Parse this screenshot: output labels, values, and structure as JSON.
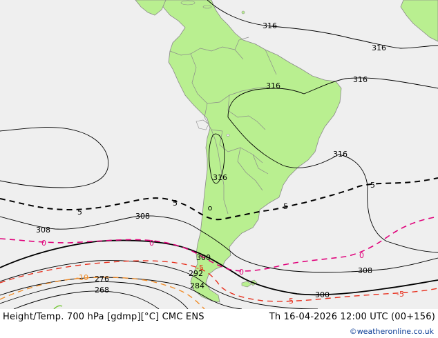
{
  "title": "Height/Temp. 700 hPa [gdmp][°C] CMC ENS",
  "valid_time": "Th 16-04-2026 12:00 UTC (00+156)",
  "credit": "©weatheronline.co.uk",
  "colors": {
    "ocean": "#efefef",
    "land": "#b9ef90",
    "land_border": "#8a8a8a",
    "height_contour": "#000000",
    "temp_neg_contour": "#e85a1e",
    "temp_zero_contour": "#e0007a",
    "temp_pos_contour": "#000000",
    "credit_text": "#0a3c96"
  },
  "height_labels": {
    "h316_a": "316",
    "h316_b": "316",
    "h316_c": "316",
    "h316_d": "316",
    "h316_e": "316",
    "h316_f": "316",
    "h308_a": "308",
    "h308_b": "308",
    "h308_c": "308",
    "h300_a": "300",
    "h300_b": "300",
    "h292": "292",
    "h284": "284",
    "h276": "276",
    "h268": "268"
  },
  "temp_labels": {
    "t5_a": "5",
    "t5_b": "5",
    "t5_c": "5",
    "t5_d": "5",
    "t0_a": "0",
    "t0_b": "0",
    "t0_c": "0",
    "t0_d": "0",
    "tm5_a": "-5",
    "tm5_b": "-5",
    "tm5_c": "-5",
    "tm10": "-10"
  }
}
